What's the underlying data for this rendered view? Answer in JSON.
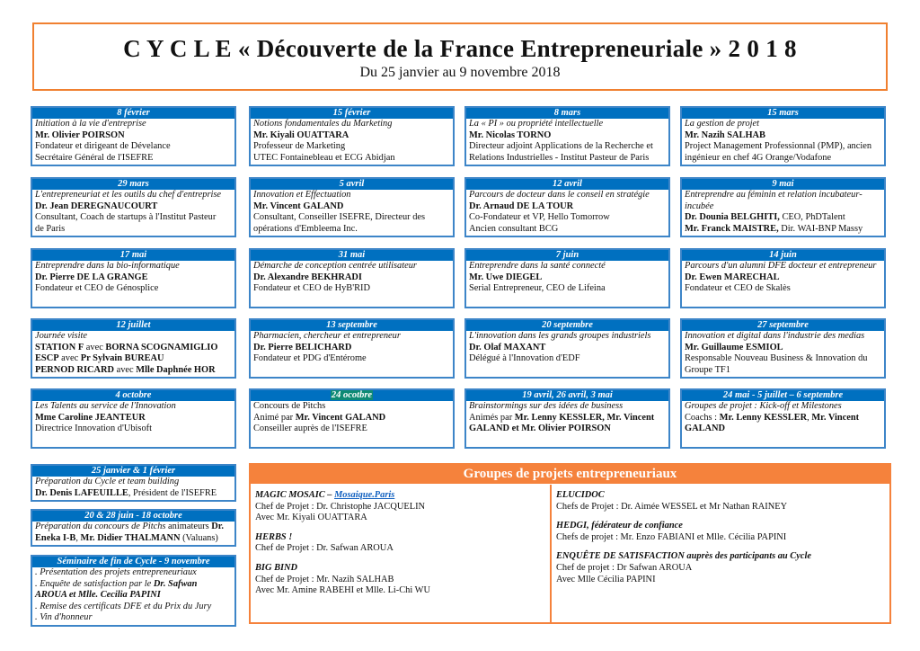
{
  "header": {
    "title": "C Y C L E  « Découverte de la France Entrepreneuriale » 2 0 1 8",
    "subtitle": "Du 25 janvier au 9 novembre 2018"
  },
  "colors": {
    "card_header": "#0070C0",
    "card_border": "#3D85C8",
    "accent_orange": "#F5823C",
    "highlight": "#0E8A74",
    "link": "#1060C0"
  },
  "sessions": [
    {
      "date": "8 février",
      "lines": [
        [
          {
            "t": "Initiation à la vie d'entreprise",
            "s": "i"
          }
        ],
        [
          {
            "t": "Mr. Olivier POIRSON",
            "s": "b"
          }
        ],
        [
          {
            "t": "Fondateur et dirigeant de Dévelance",
            "s": ""
          }
        ],
        [
          {
            "t": "Secrétaire Général de l'ISEFRE",
            "s": ""
          }
        ]
      ]
    },
    {
      "date": "15 février",
      "lines": [
        [
          {
            "t": "Notions fondamentales du Marketing",
            "s": "i"
          }
        ],
        [
          {
            "t": "Mr. Kiyali OUATTARA",
            "s": "b"
          }
        ],
        [
          {
            "t": "Professeur de Marketing",
            "s": ""
          }
        ],
        [
          {
            "t": "UTEC Fontainebleau et ECG Abidjan",
            "s": ""
          }
        ]
      ]
    },
    {
      "date": "8 mars",
      "lines": [
        [
          {
            "t": " La « PI » ou propriété intellectuelle",
            "s": "i"
          }
        ],
        [
          {
            "t": "Mr. Nicolas TORNO",
            "s": "b"
          }
        ],
        [
          {
            "t": "Directeur adjoint Applications de la Recherche et",
            "s": ""
          }
        ],
        [
          {
            "t": "Relations Industrielles - Institut Pasteur de Paris",
            "s": ""
          }
        ]
      ]
    },
    {
      "date": "15 mars",
      "lines": [
        [
          {
            "t": "La gestion de projet",
            "s": "i"
          }
        ],
        [
          {
            "t": "Mr. Nazih SALHAB",
            "s": "b"
          }
        ],
        [
          {
            "t": "Project Management Professionnal (PMP), ancien",
            "s": ""
          }
        ],
        [
          {
            "t": "ingénieur en chef 4G Orange/Vodafone",
            "s": ""
          }
        ]
      ]
    },
    {
      "date": "29 mars",
      "lines": [
        [
          {
            "t": "L'entrepreneuriat et les outils du chef d'entreprise",
            "s": "i"
          }
        ],
        [
          {
            "t": "Dr. Jean DEREGNAUCOURT",
            "s": "b"
          }
        ],
        [
          {
            "t": "Consultant, Coach de startups à l'Institut Pasteur",
            "s": ""
          }
        ],
        [
          {
            "t": "de Paris",
            "s": ""
          }
        ]
      ]
    },
    {
      "date": "5 avril",
      "lines": [
        [
          {
            "t": "Innovation et Effectuation",
            "s": "i"
          }
        ],
        [
          {
            "t": "Mr. Vincent GALAND",
            "s": "b"
          }
        ],
        [
          {
            "t": "Consultant, Conseiller ISEFRE, Directeur des",
            "s": ""
          }
        ],
        [
          {
            "t": "opérations d'Embleema Inc.",
            "s": ""
          }
        ]
      ]
    },
    {
      "date": "12 avril",
      "lines": [
        [
          {
            "t": "Parcours de docteur dans le conseil en stratégie",
            "s": "i"
          }
        ],
        [
          {
            "t": "Dr. Arnaud DE LA TOUR",
            "s": "b"
          }
        ],
        [
          {
            "t": "Co-Fondateur et VP, Hello Tomorrow",
            "s": ""
          }
        ],
        [
          {
            "t": "Ancien consultant BCG",
            "s": ""
          }
        ]
      ]
    },
    {
      "date": "9 mai",
      "lines": [
        [
          {
            "t": "Entreprendre au féminin et relation incubateur-",
            "s": "i"
          }
        ],
        [
          {
            "t": "incubée",
            "s": "i"
          }
        ],
        [
          {
            "t": "Dr. Dounia BELGHITI,",
            "s": "b"
          },
          {
            "t": " CEO, PhDTalent",
            "s": ""
          }
        ],
        [
          {
            "t": "Mr. Franck MAISTRE,",
            "s": "b"
          },
          {
            "t": " Dir. WAI-BNP Massy",
            "s": ""
          }
        ]
      ]
    },
    {
      "date": "17 mai",
      "lines": [
        [
          {
            "t": "Entreprendre dans la bio-informatique",
            "s": "i"
          }
        ],
        [
          {
            "t": "Dr. Pierre DE LA GRANGE",
            "s": "b"
          }
        ],
        [
          {
            "t": "Fondateur et CEO de Génosplice",
            "s": ""
          }
        ]
      ]
    },
    {
      "date": "31 mai",
      "lines": [
        [
          {
            "t": "Démarche de conception centrée utilisateur",
            "s": "i"
          }
        ],
        [
          {
            "t": "Dr. Alexandre BEKHRADI",
            "s": "b"
          }
        ],
        [
          {
            "t": "Fondateur et CEO de HyB'RID",
            "s": ""
          }
        ]
      ]
    },
    {
      "date": "7 juin",
      "lines": [
        [
          {
            "t": "Entreprendre dans la santé connecté",
            "s": "i"
          }
        ],
        [
          {
            "t": "Mr. Uwe DIEGEL",
            "s": "b"
          }
        ],
        [
          {
            "t": "Serial Entrepreneur, CEO de Lifeina",
            "s": ""
          }
        ]
      ]
    },
    {
      "date": "14 juin",
      "lines": [
        [
          {
            "t": "Parcours d'un alumni DFE docteur et entrepreneur",
            "s": "i"
          }
        ],
        [
          {
            "t": "Dr. Ewen MARECHAL",
            "s": "b"
          }
        ],
        [
          {
            "t": "Fondateur et CEO de Skalès",
            "s": ""
          }
        ]
      ]
    },
    {
      "date": "12 juillet",
      "lines": [
        [
          {
            "t": "Journée visite",
            "s": "i"
          }
        ],
        [
          {
            "t": "STATION F",
            "s": "b"
          },
          {
            "t": " avec ",
            "s": ""
          },
          {
            "t": "BORNA SCOGNAMIGLIO",
            "s": "b"
          }
        ],
        [
          {
            "t": "ESCP",
            "s": "b"
          },
          {
            "t": " avec ",
            "s": ""
          },
          {
            "t": "Pr Sylvain BUREAU",
            "s": "b"
          }
        ],
        [
          {
            "t": "PERNOD RICARD",
            "s": "b"
          },
          {
            "t": " avec ",
            "s": ""
          },
          {
            "t": "Mlle Daphnée HOR",
            "s": "b"
          }
        ]
      ]
    },
    {
      "date": "13 septembre",
      "lines": [
        [
          {
            "t": "Pharmacien, chercheur et entrepreneur",
            "s": "i"
          }
        ],
        [
          {
            "t": "Dr. Pierre BELICHARD",
            "s": "b"
          }
        ],
        [
          {
            "t": "Fondateur et PDG d'Entérome",
            "s": ""
          }
        ]
      ]
    },
    {
      "date": "20 septembre",
      "lines": [
        [
          {
            "t": "L'innovation dans les grands groupes industriels",
            "s": "i"
          }
        ],
        [
          {
            "t": "Dr. Olaf MAXANT",
            "s": "b"
          }
        ],
        [
          {
            "t": "Délégué à l'Innovation d'EDF",
            "s": ""
          }
        ]
      ]
    },
    {
      "date": "27 septembre",
      "lines": [
        [
          {
            "t": "Innovation et digital dans l'industrie des medias",
            "s": "i"
          }
        ],
        [
          {
            "t": "Mr. Guillaume ESMIOL",
            "s": "b"
          }
        ],
        [
          {
            "t": "Responsable Nouveau Business & Innovation du",
            "s": ""
          }
        ],
        [
          {
            "t": "Groupe TF1",
            "s": ""
          }
        ]
      ]
    },
    {
      "date": "4 octobre",
      "lines": [
        [
          {
            "t": "Les Talents au service de l'Innovation",
            "s": "i"
          }
        ],
        [
          {
            "t": "Mme Caroline JEANTEUR",
            "s": "b"
          }
        ],
        [
          {
            "t": "Directrice Innovation d'Ubisoft",
            "s": ""
          }
        ]
      ]
    },
    {
      "date": "24 ocotbre",
      "highlight": true,
      "lines": [
        [
          {
            "t": "Concours de Pitchs",
            "s": ""
          }
        ],
        [
          {
            "t": "Animé par ",
            "s": ""
          },
          {
            "t": "Mr. Vincent GALAND",
            "s": "b"
          }
        ],
        [
          {
            "t": "Conseiller auprès de l'ISEFRE",
            "s": ""
          }
        ]
      ]
    },
    {
      "date": "19 avril, 26 avril, 3 mai",
      "lines": [
        [
          {
            "t": "Brainstormings sur des idées de business",
            "s": "i"
          }
        ],
        [
          {
            "t": "Animés par ",
            "s": ""
          },
          {
            "t": "Mr. Lenny KESSLER, Mr. Vincent",
            "s": "b"
          }
        ],
        [
          {
            "t": "GALAND et Mr. Olivier POIRSON",
            "s": "b"
          }
        ]
      ]
    },
    {
      "date": "24 mai  - 5 juillet – 6 septembre",
      "lines": [
        [
          {
            "t": "Groupes de projet : Kick-off et Milestones",
            "s": "i"
          }
        ],
        [
          {
            "t": "Coachs : ",
            "s": ""
          },
          {
            "t": "Mr. Lenny KESSLER",
            "s": "b"
          },
          {
            "t": ", ",
            "s": ""
          },
          {
            "t": "Mr. Vincent",
            "s": "b"
          }
        ],
        [
          {
            "t": "GALAND",
            "s": "b"
          }
        ]
      ]
    }
  ],
  "extra_sessions": [
    {
      "date": "25 janvier & 1 février",
      "lines": [
        [
          {
            "t": "Préparation du Cycle et team building",
            "s": "i"
          }
        ],
        [
          {
            "t": "Dr. Denis LAFEUILLE",
            "s": "b"
          },
          {
            "t": ", Président de l'ISEFRE",
            "s": ""
          }
        ]
      ]
    },
    {
      "date": "20 & 28 juin - 18 octobre",
      "lines": [
        [
          {
            "t": "Préparation du concours de Pitchs",
            "s": "i"
          },
          {
            "t": " animateurs ",
            "s": ""
          },
          {
            "t": "Dr.",
            "s": "b"
          }
        ],
        [
          {
            "t": " Eneka I-B",
            "s": "b"
          },
          {
            "t": ", ",
            "s": ""
          },
          {
            "t": "Mr. Didier THALMANN",
            "s": "b"
          },
          {
            "t": " (Valuans)",
            "s": ""
          }
        ]
      ]
    },
    {
      "date": "Séminaire de fin de Cycle - 9 novembre",
      "lines": [
        [
          {
            "t": ". Présentation des projets entrepreneuriaux",
            "s": "i"
          }
        ],
        [
          {
            "t": ". Enquête de satisfaction par le ",
            "s": "i"
          },
          {
            "t": "Dr. Safwan",
            "s": "bi"
          }
        ],
        [
          {
            "t": "AROUA et Mlle. Cecilia PAPINI",
            "s": "bi"
          }
        ],
        [
          {
            "t": ". Remise des certificats DFE et du Prix du Jury",
            "s": "i"
          }
        ],
        [
          {
            "t": ". Vin d'honneur",
            "s": "i"
          }
        ]
      ]
    }
  ],
  "groups": {
    "title": "Groupes de projets entrepreneuriaux",
    "left": [
      {
        "name": "MAGIC MOSAIC – ",
        "link": "Mosaique.Paris",
        "lines": [
          "Chef de Projet : Dr. Christophe JACQUELIN",
          "Avec Mr. Kiyali OUATTARA"
        ]
      },
      {
        "name": "HERBS !",
        "lines": [
          "Chef de Projet : Dr. Safwan AROUA"
        ]
      },
      {
        "name": "BIG BIND",
        "lines": [
          "Chef de Projet : Mr. Nazih SALHAB",
          "Avec Mr. Amine RABEHI et Mlle. Li-Chi WU"
        ]
      }
    ],
    "right": [
      {
        "name": "ELUCIDOC",
        "lines": [
          "Chefs de Projet : Dr. Aimée WESSEL et Mr Nathan RAINEY"
        ]
      },
      {
        "name": "HEDGI, fédérateur de confiance",
        "lines": [
          "Chefs de projet : Mr. Enzo FABIANI et Mlle. Cécilia PAPINI"
        ]
      },
      {
        "name": "ENQUÊTE DE SATISFACTION auprès des participants au Cycle",
        "lines": [
          "Chef de projet : Dr Safwan AROUA",
          "Avec Mlle Cécilia PAPINI"
        ]
      }
    ]
  }
}
